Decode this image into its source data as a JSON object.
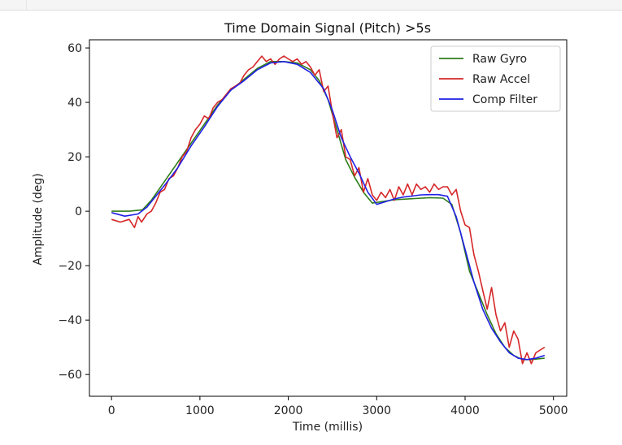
{
  "chart_data": {
    "type": "line",
    "title": "Time Domain Signal (Pitch) >5s",
    "xlabel": "Time (millis)",
    "ylabel": "Amplitude (deg)",
    "xlim": [
      -250,
      5150
    ],
    "ylim": [
      -68,
      63
    ],
    "xticks": [
      0,
      1000,
      2000,
      3000,
      4000,
      5000
    ],
    "yticks": [
      -60,
      -40,
      -20,
      0,
      20,
      40,
      60
    ],
    "grid": false,
    "legend_position": "top-right",
    "series": [
      {
        "name": "Raw Gyro",
        "color": "#2e7d1a",
        "x": [
          0,
          200,
          350,
          450,
          600,
          750,
          900,
          1050,
          1200,
          1350,
          1500,
          1650,
          1800,
          1950,
          2100,
          2250,
          2350,
          2450,
          2550,
          2650,
          2750,
          2850,
          2950,
          3050,
          3200,
          3400,
          3600,
          3750,
          3850,
          3950,
          4050,
          4150,
          4250,
          4350,
          4450,
          4550,
          4650,
          4750,
          4900
        ],
        "y": [
          0,
          0,
          0.5,
          4,
          11,
          18,
          25,
          32,
          39,
          44.5,
          48.5,
          52.5,
          55,
          55,
          54.5,
          52,
          48,
          41,
          30,
          19,
          12.5,
          7,
          3,
          3.5,
          4.2,
          4.6,
          5,
          4.8,
          2.5,
          -8,
          -22,
          -30,
          -38,
          -45,
          -50,
          -53,
          -54.5,
          -54.5,
          -54
        ]
      },
      {
        "name": "Raw Accel",
        "color": "#d62728",
        "x": [
          0,
          100,
          200,
          260,
          300,
          340,
          400,
          450,
          500,
          550,
          600,
          650,
          700,
          750,
          800,
          850,
          900,
          950,
          1000,
          1050,
          1100,
          1150,
          1200,
          1250,
          1300,
          1350,
          1400,
          1450,
          1500,
          1550,
          1600,
          1650,
          1700,
          1750,
          1800,
          1850,
          1900,
          1950,
          2000,
          2050,
          2100,
          2150,
          2200,
          2250,
          2300,
          2350,
          2400,
          2450,
          2500,
          2550,
          2600,
          2650,
          2700,
          2750,
          2800,
          2850,
          2900,
          2950,
          3000,
          3050,
          3100,
          3150,
          3200,
          3250,
          3300,
          3350,
          3400,
          3450,
          3500,
          3550,
          3600,
          3650,
          3700,
          3750,
          3800,
          3850,
          3900,
          3950,
          4000,
          4050,
          4100,
          4150,
          4200,
          4250,
          4300,
          4350,
          4400,
          4450,
          4500,
          4550,
          4600,
          4650,
          4700,
          4750,
          4800,
          4850,
          4900
        ],
        "y": [
          -3,
          -4,
          -3,
          -6,
          -2,
          -4,
          -1,
          0,
          3,
          7,
          8,
          12,
          13,
          16,
          20,
          22,
          27,
          30,
          32,
          35,
          34,
          38,
          40,
          41,
          43,
          45,
          46,
          47,
          50,
          52,
          53,
          55,
          57,
          55,
          56,
          54,
          56,
          57,
          56,
          55,
          56,
          54,
          55,
          53,
          50,
          52,
          44,
          46,
          36,
          27,
          30,
          20,
          19,
          13,
          16,
          7,
          12,
          6,
          4,
          7,
          5,
          8,
          4,
          9,
          6,
          10,
          6,
          10,
          8,
          9,
          7,
          10,
          8,
          9,
          9,
          6,
          8,
          0,
          -5,
          -6,
          -16,
          -22,
          -29,
          -36,
          -28,
          -38,
          -44,
          -41,
          -50,
          -44,
          -47,
          -56,
          -52,
          -56,
          -52,
          -51,
          -50
        ]
      },
      {
        "name": "Comp Filter",
        "color": "#1f1fe6",
        "x": [
          0,
          150,
          300,
          400,
          500,
          600,
          750,
          900,
          1050,
          1200,
          1350,
          1500,
          1650,
          1800,
          1950,
          2100,
          2250,
          2400,
          2500,
          2600,
          2700,
          2800,
          2900,
          3000,
          3100,
          3200,
          3300,
          3400,
          3500,
          3600,
          3700,
          3800,
          3900,
          4000,
          4100,
          4200,
          4300,
          4400,
          4500,
          4600,
          4700,
          4800,
          4900
        ],
        "y": [
          -0.5,
          -1.8,
          -1,
          1.5,
          5.5,
          9.5,
          16,
          24,
          31,
          38.5,
          44.5,
          48,
          52,
          54.5,
          55,
          54,
          51,
          45,
          37,
          27,
          20,
          14,
          7,
          2.5,
          3.5,
          4.5,
          5.2,
          5.6,
          6,
          6.1,
          6.1,
          5.5,
          -2,
          -14,
          -26,
          -36,
          -43,
          -48,
          -52,
          -54,
          -54.5,
          -54,
          -53
        ]
      }
    ]
  }
}
